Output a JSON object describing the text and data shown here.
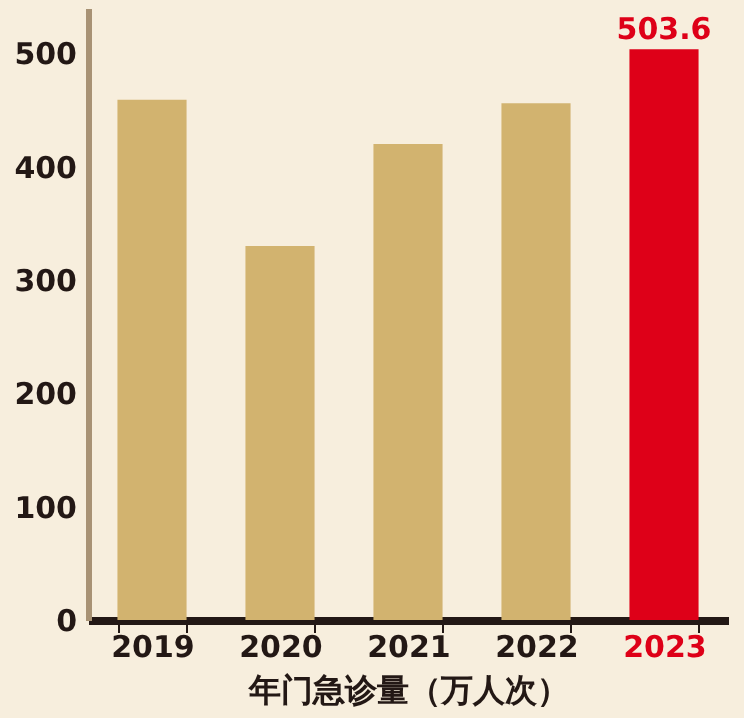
{
  "chart_data": {
    "type": "bar",
    "xlabel": "年门急诊量（万人次）",
    "categories": [
      "2019",
      "2020",
      "2021",
      "2022",
      "2023"
    ],
    "values": [
      459,
      330,
      420,
      456,
      503.6
    ],
    "colors": [
      "#d2b36f",
      "#d2b36f",
      "#d2b36f",
      "#d2b36f",
      "#de0018"
    ],
    "value_labels": [
      null,
      null,
      null,
      null,
      "503.6"
    ],
    "ylim": [
      0,
      540
    ],
    "yticks": [
      0,
      100,
      200,
      300,
      400,
      500
    ],
    "grid": false
  }
}
